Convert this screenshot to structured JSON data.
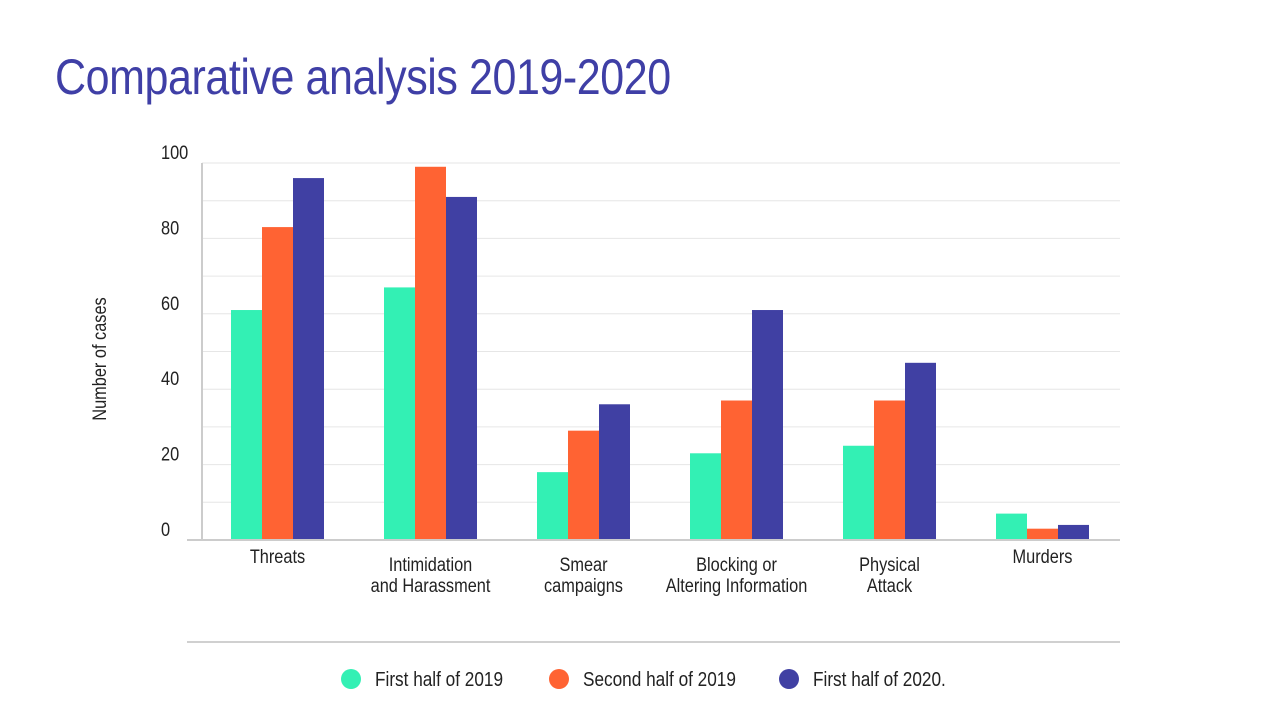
{
  "chart_data": {
    "type": "bar",
    "title": "Comparative analysis 2019-2020",
    "ylabel": "Number of cases",
    "xlabel": "",
    "ylim": [
      0,
      100
    ],
    "yticks": [
      0,
      20,
      40,
      60,
      80,
      100
    ],
    "grid": true,
    "legend_position": "bottom",
    "categories": [
      [
        "Threats"
      ],
      [
        "Intimidation",
        "and Harassment"
      ],
      [
        "Smear",
        "campaigns"
      ],
      [
        "Blocking or",
        "Altering Information"
      ],
      [
        "Physical",
        "Attack"
      ],
      [
        "Murders"
      ]
    ],
    "series": [
      {
        "name": "First half of 2019",
        "color": "#33f0b4",
        "values": [
          61,
          67,
          18,
          23,
          25,
          7
        ]
      },
      {
        "name": "Second half of 2019",
        "color": "#ff6333",
        "values": [
          83,
          99,
          29,
          37,
          37,
          3
        ]
      },
      {
        "name": "First half of 2020.",
        "color": "#4040a3",
        "values": [
          96,
          91,
          36,
          61,
          47,
          4
        ]
      }
    ]
  },
  "colors": {
    "title": "#3f3fa6",
    "grid": "#e6e6e6",
    "axis": "#cccccc"
  }
}
